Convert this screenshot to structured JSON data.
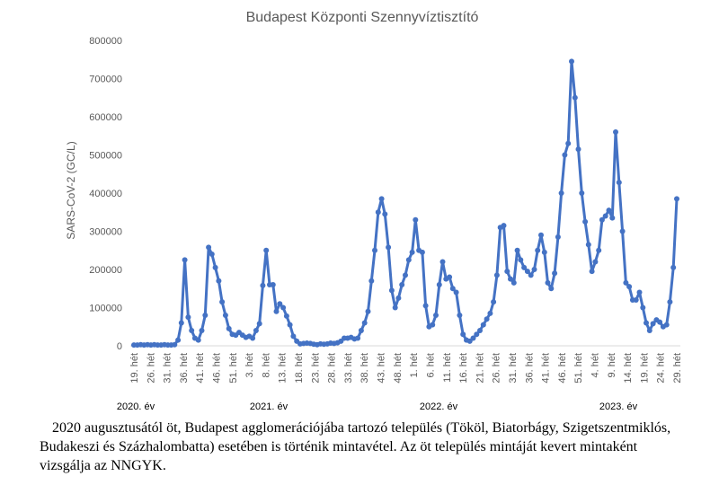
{
  "chart_data": {
    "type": "line",
    "title": "Budapest Központi Szennyvíztisztító",
    "ylabel": "SARS-CoV-2 (GC/L)",
    "xlabel": "",
    "ylim": [
      0,
      800000
    ],
    "yticks": [
      "0",
      "100000",
      "200000",
      "300000",
      "400000",
      "500000",
      "600000",
      "700000",
      "800000"
    ],
    "x_tick_labels": [
      "19. hét",
      "26. hét",
      "31. hét",
      "36. hét",
      "41. hét",
      "46. hét",
      "51. hét",
      "3. hét",
      "8. hét",
      "13. hét",
      "18. hét",
      "23. hét",
      "28. hét",
      "33. hét",
      "38. hét",
      "43. hét",
      "48. hét",
      "1. hét",
      "6. hét",
      "11. hét",
      "16. hét",
      "21. hét",
      "26. hét",
      "31. hét",
      "36. hét",
      "41. hét",
      "46. hét",
      "51. hét",
      "4. hét",
      "9. hét",
      "14. hét",
      "19. hét",
      "24. hét",
      "29. hét"
    ],
    "year_labels": [
      "2020. év",
      "2021. év",
      "2022. év",
      "2023. év"
    ],
    "grid": false,
    "legend": "none",
    "series": [
      {
        "color": "#4472C4",
        "values": [
          2000,
          2000,
          3000,
          2000,
          3000,
          2000,
          3000,
          2000,
          2000,
          3000,
          2000,
          2000,
          3000,
          15000,
          60000,
          225000,
          75000,
          40000,
          20000,
          15000,
          40000,
          80000,
          258000,
          240000,
          205000,
          170000,
          115000,
          80000,
          45000,
          30000,
          28000,
          35000,
          28000,
          22000,
          25000,
          20000,
          40000,
          58000,
          158000,
          250000,
          160000,
          160000,
          90000,
          110000,
          100000,
          78000,
          55000,
          25000,
          12000,
          5000,
          6000,
          7000,
          6000,
          4000,
          3000,
          5000,
          4000,
          5000,
          7000,
          6000,
          8000,
          12000,
          20000,
          20000,
          22000,
          18000,
          20000,
          40000,
          60000,
          90000,
          170000,
          250000,
          350000,
          385000,
          345000,
          258000,
          145000,
          100000,
          125000,
          160000,
          185000,
          225000,
          245000,
          330000,
          250000,
          245000,
          105000,
          50000,
          55000,
          80000,
          160000,
          220000,
          175000,
          180000,
          150000,
          140000,
          80000,
          30000,
          15000,
          12000,
          20000,
          30000,
          40000,
          55000,
          70000,
          85000,
          115000,
          185000,
          310000,
          315000,
          195000,
          175000,
          165000,
          250000,
          225000,
          205000,
          195000,
          185000,
          200000,
          250000,
          290000,
          245000,
          165000,
          150000,
          190000,
          285000,
          400000,
          500000,
          530000,
          745000,
          650000,
          515000,
          400000,
          325000,
          265000,
          195000,
          220000,
          250000,
          330000,
          340000,
          355000,
          335000,
          560000,
          428000,
          300000,
          165000,
          155000,
          120000,
          120000,
          140000,
          100000,
          60000,
          40000,
          58000,
          68000,
          62000,
          50000,
          55000,
          115000,
          205000,
          385000
        ]
      }
    ]
  },
  "caption": {
    "text": "2020 augusztusától öt, Budapest agglomerációjába tartozó település (Tököl, Biatorbágy, Szigetszentmiklós, Budakeszi és Százhalombatta) esetében is történik mintavétel. Az öt település mintáját kevert mintaként vizsgálja az NNGYK."
  }
}
